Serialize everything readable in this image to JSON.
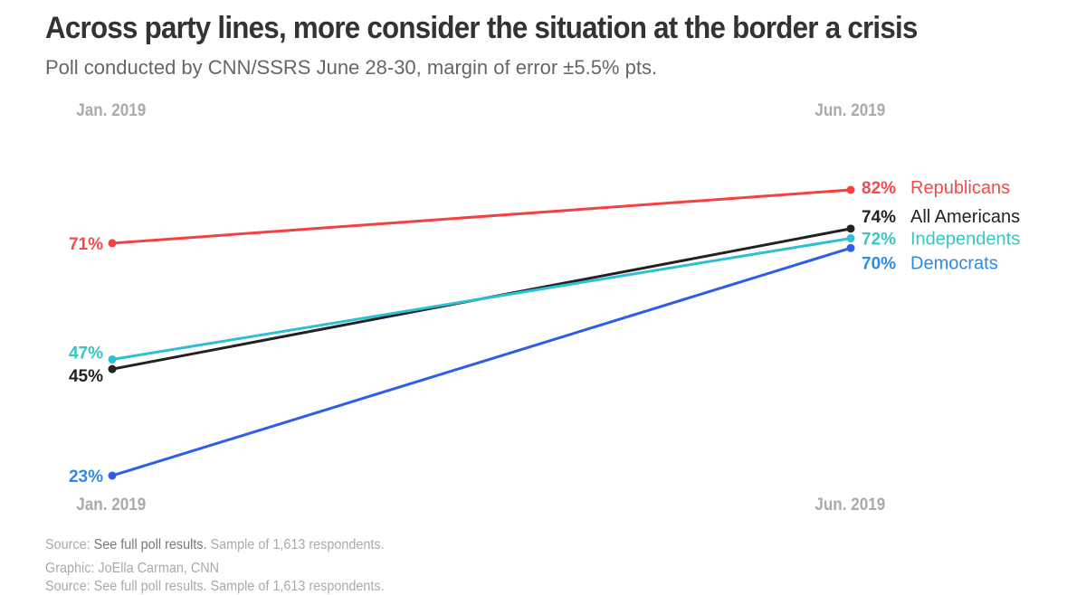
{
  "chart_data": {
    "type": "line",
    "title": "Across party lines, more consider the situation at the border a crisis",
    "subtitle": "Poll conducted by CNN/SSRS June 28-30, margin of error ±5.5% pts.",
    "categories": [
      "Jan. 2019",
      "Jun. 2019"
    ],
    "ylim": [
      23,
      82
    ],
    "grid": false,
    "series": [
      {
        "name": "Republicans",
        "values": [
          71,
          82
        ],
        "labels": [
          "71%",
          "82%"
        ],
        "color": "#f44040",
        "label_color": "#f44a4a"
      },
      {
        "name": "All Americans",
        "values": [
          45,
          74
        ],
        "labels": [
          "45%",
          "74%"
        ],
        "color": "#222222",
        "label_color": "#222222"
      },
      {
        "name": "Independents",
        "values": [
          47,
          72
        ],
        "labels": [
          "47%",
          "72%"
        ],
        "color": "#2cbfd6",
        "label_color": "#34c8c0"
      },
      {
        "name": "Democrats",
        "values": [
          23,
          70
        ],
        "labels": [
          "23%",
          "70%"
        ],
        "color": "#2e5ee8",
        "label_color": "#2b8be8"
      }
    ]
  },
  "footer": {
    "source_prefix": "Source: ",
    "source_link": "See full poll results.",
    "source_suffix": " Sample of 1,613 respondents.",
    "credit": "Graphic: JoElla Carman, CNN",
    "repeat": "Source: See full poll results. Sample of 1,613 respondents."
  }
}
